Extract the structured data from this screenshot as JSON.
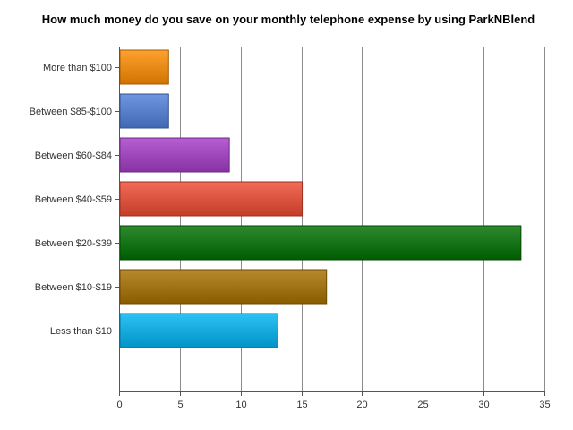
{
  "chart_data": {
    "type": "bar",
    "orientation": "horizontal",
    "title": "How much money do you save on your monthly telephone expense by using ParkNBlend",
    "categories": [
      "More than $100",
      "Between $85-$100",
      "Between $60-$84",
      "Between $40-$59",
      "Between $20-$39",
      "Between $10-$19",
      "Less than $10"
    ],
    "values": [
      4,
      4,
      9,
      15,
      33,
      17,
      13
    ],
    "colors": [
      "#ff8c00",
      "#4f7fd9",
      "#a63cc8",
      "#ee4a32",
      "#007000",
      "#a87000",
      "#00b4f2"
    ],
    "xlim": [
      0,
      35
    ],
    "xticks": [
      0,
      5,
      10,
      15,
      20,
      25,
      30,
      35
    ],
    "xlabel": "",
    "ylabel": "",
    "grid": "vertical",
    "legend": "none"
  }
}
